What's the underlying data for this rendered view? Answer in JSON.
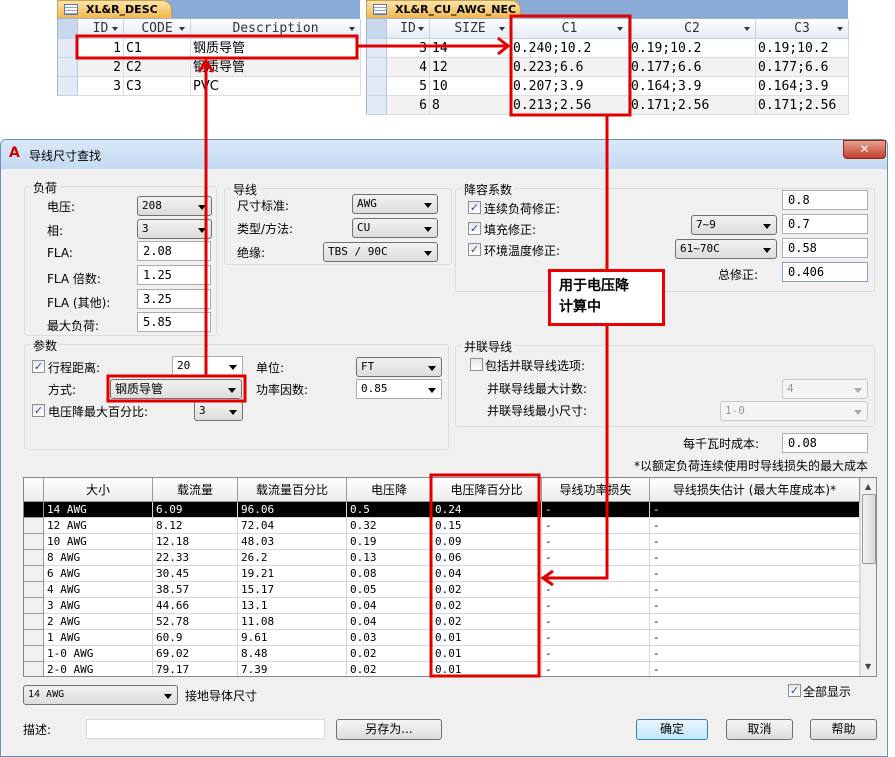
{
  "desc_table": {
    "tab": "XL&R_DESC",
    "columns": [
      "ID",
      "CODE",
      "Description"
    ],
    "rows": [
      {
        "id": "1",
        "code": "C1",
        "desc": "钢质导管"
      },
      {
        "id": "2",
        "code": "C2",
        "desc": "钢质导管"
      },
      {
        "id": "3",
        "code": "C3",
        "desc": "PVC"
      }
    ]
  },
  "awg_table": {
    "tab": "XL&R_CU_AWG_NEC",
    "columns": [
      "ID",
      "SIZE",
      "C1",
      "C2",
      "C3"
    ],
    "rows": [
      {
        "id": "3",
        "size": "14",
        "c1": "0.240;10.2",
        "c2": "0.19;10.2",
        "c3": "0.19;10.2"
      },
      {
        "id": "4",
        "size": "12",
        "c1": "0.223;6.6",
        "c2": "0.177;6.6",
        "c3": "0.177;6.6"
      },
      {
        "id": "5",
        "size": "10",
        "c1": "0.207;3.9",
        "c2": "0.164;3.9",
        "c3": "0.164;3.9"
      },
      {
        "id": "6",
        "size": "8",
        "c1": "0.213;2.56",
        "c2": "0.171;2.56",
        "c3": "0.171;2.56"
      }
    ]
  },
  "dialog": {
    "title": "导线尺寸查找",
    "load": {
      "label": "负荷",
      "voltage_label": "电压:",
      "voltage": "208",
      "phase_label": "相:",
      "phase": "3",
      "fla_label": "FLA:",
      "fla": "2.08",
      "fla_mult_label": "FLA 倍数:",
      "fla_mult": "1.25",
      "fla_other_label": "FLA (其他):",
      "fla_other": "3.25",
      "max_load_label": "最大负荷:",
      "max_load": "5.85"
    },
    "conductor": {
      "label": "导线",
      "standard_label": "尺寸标准:",
      "standard": "AWG",
      "type_label": "类型/方法:",
      "type": "CU",
      "insulation_label": "绝缘:",
      "insulation": "TBS / 90C"
    },
    "derating": {
      "label": "降容系数",
      "continuous_label": "连续负荷修正:",
      "continuous_checked": true,
      "continuous": "0.8",
      "fill_label": "填充修正:",
      "fill_checked": true,
      "fill_range": "7~9",
      "fill": "0.7",
      "ambient_label": "环境温度修正:",
      "ambient_checked": true,
      "ambient_range": "61~70C",
      "ambient": "0.58",
      "total_label": "总修正:",
      "total": "0.406"
    },
    "params": {
      "label": "参数",
      "run_label": "行程距离:",
      "run_checked": true,
      "run": "20",
      "unit_label": "单位:",
      "unit": "FT",
      "method_label": "方式:",
      "method": "钢质导管",
      "pf_label": "功率因数:",
      "pf": "0.85",
      "vd_max_label": "电压降最大百分比:",
      "vd_max_checked": true,
      "vd_max": "3"
    },
    "parallel": {
      "label": "并联导线",
      "include_label": "包括并联导线选项:",
      "include_checked": false,
      "max_count_label": "并联导线最大计数:",
      "max_count": "4",
      "min_size_label": "并联导线最小尺寸:",
      "min_size": "1-0"
    },
    "cost_label": "每千瓦时成本:",
    "cost": "0.08",
    "cost_note": "*以额定负荷连续使用时导线损失的最大成本",
    "grid": {
      "columns": [
        "大小",
        "载流量",
        "载流量百分比",
        "电压降",
        "电压降百分比",
        "导线功率损失",
        "导线损失估计 (最大年度成本)*"
      ],
      "rows": [
        [
          "14 AWG",
          "6.09",
          "96.06",
          "0.5",
          "0.24",
          "-",
          "-"
        ],
        [
          "12 AWG",
          "8.12",
          "72.04",
          "0.32",
          "0.15",
          "-",
          "-"
        ],
        [
          "10 AWG",
          "12.18",
          "48.03",
          "0.19",
          "0.09",
          "-",
          "-"
        ],
        [
          "8 AWG",
          "22.33",
          "26.2",
          "0.13",
          "0.06",
          "-",
          "-"
        ],
        [
          "6 AWG",
          "30.45",
          "19.21",
          "0.08",
          "0.04",
          "-",
          "-"
        ],
        [
          "4 AWG",
          "38.57",
          "15.17",
          "0.05",
          "0.02",
          "-",
          "-"
        ],
        [
          "3 AWG",
          "44.66",
          "13.1",
          "0.04",
          "0.02",
          "-",
          "-"
        ],
        [
          "2 AWG",
          "52.78",
          "11.08",
          "0.04",
          "0.02",
          "-",
          "-"
        ],
        [
          "1 AWG",
          "60.9",
          "9.61",
          "0.03",
          "0.01",
          "-",
          "-"
        ],
        [
          "1-0 AWG",
          "69.02",
          "8.48",
          "0.02",
          "0.01",
          "-",
          "-"
        ],
        [
          "2-0 AWG",
          "79.17",
          "7.39",
          "0.02",
          "0.01",
          "-",
          "-"
        ]
      ]
    },
    "ground_size": "14 AWG",
    "ground_label": "接地导体尺寸",
    "show_all_label": "全部显示",
    "show_all_checked": true,
    "desc_label": "描述:",
    "desc_value": "",
    "save_as": "另存为...",
    "ok": "确定",
    "cancel": "取消",
    "help": "帮助"
  },
  "annotation": {
    "text": "用于电压降\n计算中",
    "color": "#e00000"
  }
}
